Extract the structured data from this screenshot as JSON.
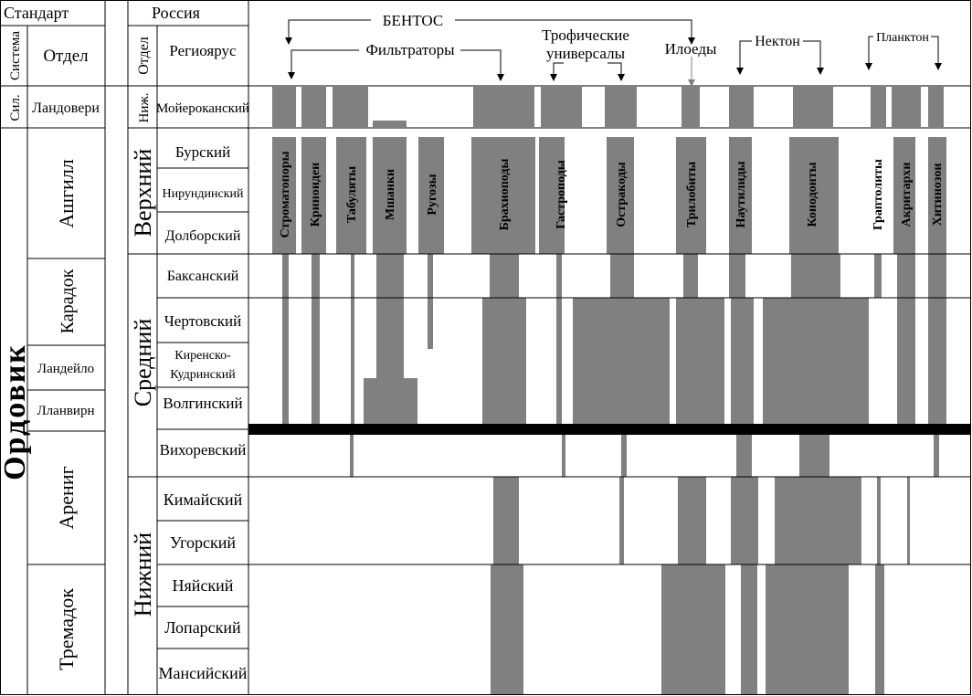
{
  "header": {
    "standard": "Стандарт",
    "russia": "Россия",
    "system_col": "Система",
    "department_col_left": "Отдел",
    "department_col_right": "Отдел",
    "regional_stage_col": "Региоярус"
  },
  "groups": {
    "benthos": "БЕНТОС",
    "filter_feeders": "Фильтраторы",
    "trophic_universals_line1": "Трофические",
    "trophic_universals_line2": "универсалы",
    "deposit_feeders": "Илоеды",
    "nekton": "Нектон",
    "plankton": "Планктон"
  },
  "standard_column": {
    "silurian_system": "Сил.",
    "llandovery": "Ландовери",
    "ordovician_system": "Ордовик",
    "ashgill": "Ашгилл",
    "caradoc": "Карадок",
    "llandeilo": "Ландейло",
    "llanvirn": "Лланвирн",
    "arenig": "Арениг",
    "tremadoc": "Тремадок"
  },
  "russia_column": {
    "lower_short": "Ниж.",
    "upper": "Верхний",
    "middle": "Средний",
    "lower": "Нижний",
    "stages": {
      "moyerokan": "Мойероканский",
      "bur": "Бурский",
      "nirundin": "Нирундинский",
      "dolbor": "Долборский",
      "baksan": "Баксанский",
      "chertov": "Чертовский",
      "kirensk_line1": "Киренско-",
      "kirensk_line2": "Кудринский",
      "volgin": "Волгинский",
      "vikhorev": "Вихоревский",
      "kimay": "Кимайский",
      "ugor": "Угорский",
      "nyay": "Няйский",
      "lopar": "Лопарский",
      "mansiy": "Мансийский"
    }
  },
  "taxa": {
    "stromatopores": "Строматопоры",
    "crinoids": "Криноидеи",
    "tabulates": "Табуляты",
    "bryozoans": "Мшанки",
    "rugosa": "Ругозы",
    "brachiopods": "Брахиоподы",
    "gastropods": "Гастроподы",
    "ostracods": "Остракоды",
    "trilobites": "Трилобиты",
    "nautiloids": "Наутилиды",
    "conodonts": "Конодонты",
    "graptolites": "Граптолиты",
    "acritarchs": "Акритархи",
    "chitinozoans": "Хитинозои"
  },
  "colors": {
    "band": "#808080",
    "line": "#000000",
    "background": "#ffffff"
  }
}
